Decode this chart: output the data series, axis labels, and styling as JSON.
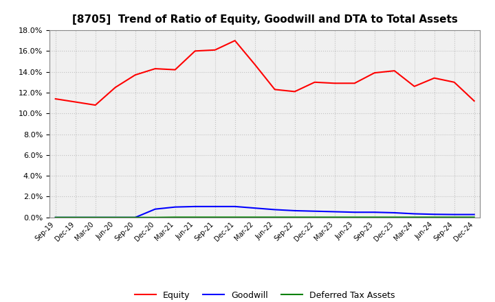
{
  "title": "[8705]  Trend of Ratio of Equity, Goodwill and DTA to Total Assets",
  "x_labels": [
    "Sep-19",
    "Dec-19",
    "Mar-20",
    "Jun-20",
    "Sep-20",
    "Dec-20",
    "Mar-21",
    "Jun-21",
    "Sep-21",
    "Dec-21",
    "Mar-22",
    "Jun-22",
    "Sep-22",
    "Dec-22",
    "Mar-23",
    "Jun-23",
    "Sep-23",
    "Dec-23",
    "Mar-24",
    "Jun-24",
    "Sep-24",
    "Dec-24"
  ],
  "equity": [
    11.4,
    11.1,
    10.8,
    12.5,
    13.7,
    14.3,
    14.2,
    16.0,
    16.1,
    17.0,
    14.7,
    12.3,
    12.1,
    13.0,
    12.9,
    12.9,
    13.9,
    14.1,
    12.6,
    13.4,
    13.0,
    11.2
  ],
  "goodwill": [
    0.0,
    0.0,
    0.0,
    0.0,
    0.0,
    0.8,
    1.0,
    1.05,
    1.05,
    1.05,
    0.9,
    0.75,
    0.65,
    0.6,
    0.55,
    0.5,
    0.5,
    0.45,
    0.35,
    0.3,
    0.28,
    0.28
  ],
  "dta": [
    0.0,
    0.0,
    0.0,
    0.0,
    0.0,
    0.0,
    0.02,
    0.02,
    0.02,
    0.02,
    0.02,
    0.02,
    0.02,
    0.02,
    0.02,
    0.02,
    0.02,
    0.02,
    0.02,
    0.02,
    0.02,
    0.02
  ],
  "equity_color": "#FF0000",
  "goodwill_color": "#0000FF",
  "dta_color": "#008000",
  "ylim": [
    0.0,
    18.0
  ],
  "yticks": [
    0.0,
    2.0,
    4.0,
    6.0,
    8.0,
    10.0,
    12.0,
    14.0,
    16.0,
    18.0
  ],
  "bg_color": "#FFFFFF",
  "plot_bg_color": "#F0F0F0",
  "grid_color": "#FFFFFF",
  "title_fontsize": 11,
  "legend_labels": [
    "Equity",
    "Goodwill",
    "Deferred Tax Assets"
  ]
}
